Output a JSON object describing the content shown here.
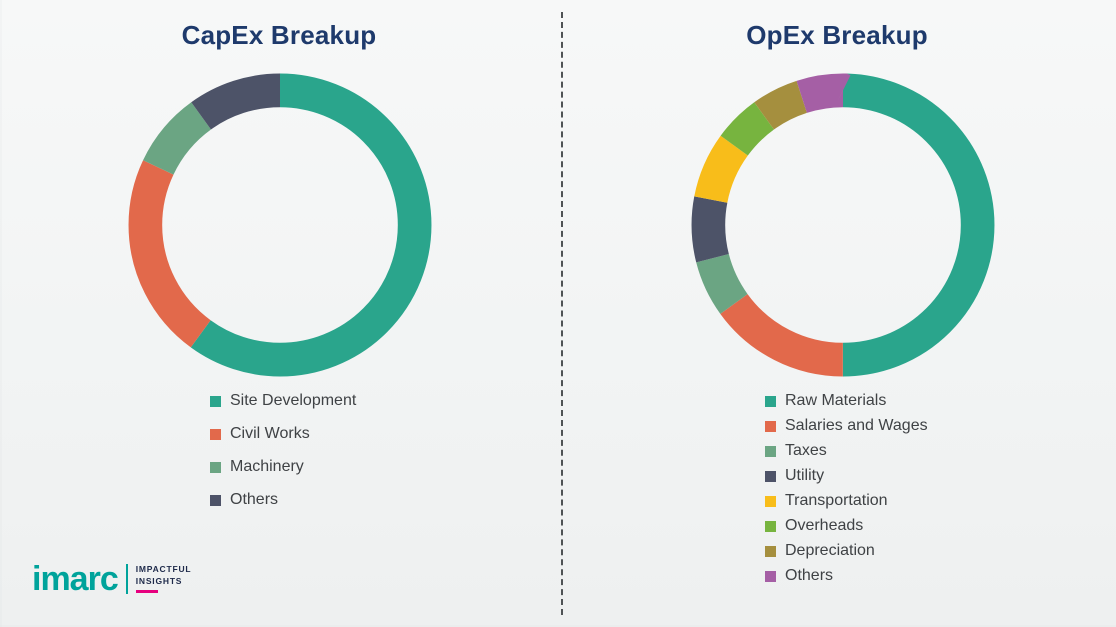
{
  "page": {
    "background_color": "#f4f5f5",
    "divider_style": "vertical-dashed"
  },
  "branding": {
    "logo_text": "imarc",
    "logo_color": "#00a39b",
    "tagline_line1": "IMPACTFUL",
    "tagline_line2": "INSIGHTS",
    "accent_color": "#e6007e"
  },
  "chart_data": [
    {
      "type": "pie",
      "donut": true,
      "title": "CapEx Breakup",
      "title_color": "#1e3a6c",
      "legend_position": "bottom",
      "start_angle_deg": 0,
      "direction": "clockwise",
      "segments": [
        {
          "label": "Site Development",
          "value": 60,
          "color": "#2aa58c"
        },
        {
          "label": "Civil Works",
          "value": 22,
          "color": "#e2694b"
        },
        {
          "label": "Machinery",
          "value": 8,
          "color": "#6ba583"
        },
        {
          "label": "Others",
          "value": 10,
          "color": "#4d5368"
        }
      ]
    },
    {
      "type": "pie",
      "donut": true,
      "title": "OpEx Breakup",
      "title_color": "#1e3a6c",
      "legend_position": "bottom",
      "start_angle_deg": 0,
      "direction": "clockwise",
      "segments": [
        {
          "label": "Raw Materials",
          "value": 50,
          "color": "#2aa58c"
        },
        {
          "label": "Salaries and Wages",
          "value": 15,
          "color": "#e2694b"
        },
        {
          "label": "Taxes",
          "value": 6,
          "color": "#6ba583"
        },
        {
          "label": "Utility",
          "value": 7,
          "color": "#4d5368"
        },
        {
          "label": "Transportation",
          "value": 7,
          "color": "#f8bd1a"
        },
        {
          "label": "Overheads",
          "value": 5,
          "color": "#77b43f"
        },
        {
          "label": "Depreciation",
          "value": 5,
          "color": "#a58f3e"
        },
        {
          "label": "Others",
          "value": 5,
          "color": "#a55fa5"
        }
      ]
    }
  ]
}
